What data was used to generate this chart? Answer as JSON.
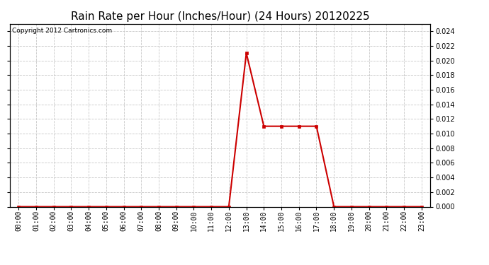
{
  "title": "Rain Rate per Hour (Inches/Hour) (24 Hours) 20120225",
  "copyright": "Copyright 2012 Cartronics.com",
  "background_color": "#ffffff",
  "plot_bg_color": "#ffffff",
  "grid_color": "#c8c8c8",
  "line_color": "#cc0000",
  "marker_color": "#cc0000",
  "x_hours": [
    0,
    1,
    2,
    3,
    4,
    5,
    6,
    7,
    8,
    9,
    10,
    11,
    12,
    13,
    14,
    15,
    16,
    17,
    18,
    19,
    20,
    21,
    22,
    23
  ],
  "y_values": [
    0.0,
    0.0,
    0.0,
    0.0,
    0.0,
    0.0,
    0.0,
    0.0,
    0.0,
    0.0,
    0.0,
    0.0,
    0.0,
    0.021,
    0.011,
    0.011,
    0.011,
    0.011,
    0.0,
    0.0,
    0.0,
    0.0,
    0.0,
    0.0
  ],
  "ylim": [
    0.0,
    0.025
  ],
  "yticks": [
    0.0,
    0.002,
    0.004,
    0.006,
    0.008,
    0.01,
    0.012,
    0.014,
    0.016,
    0.018,
    0.02,
    0.022,
    0.024
  ],
  "xlim": [
    -0.5,
    23.5
  ],
  "xlabel_labels": [
    "00:00",
    "01:00",
    "02:00",
    "03:00",
    "04:00",
    "05:00",
    "06:00",
    "07:00",
    "08:00",
    "09:00",
    "10:00",
    "11:00",
    "12:00",
    "13:00",
    "14:00",
    "15:00",
    "16:00",
    "17:00",
    "18:00",
    "19:00",
    "20:00",
    "21:00",
    "22:00",
    "23:00"
  ],
  "title_fontsize": 11,
  "copyright_fontsize": 6.5,
  "tick_fontsize": 7,
  "line_width": 1.5,
  "marker_size": 3,
  "fig_width": 6.9,
  "fig_height": 3.75,
  "dpi": 100
}
